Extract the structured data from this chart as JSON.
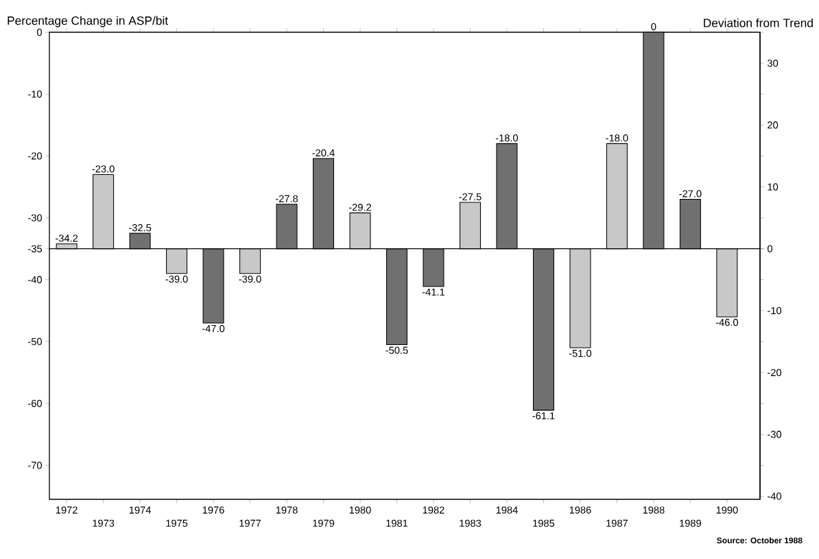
{
  "chart_data": {
    "type": "bar",
    "ylabel": "Percentage Change in ASP/bit",
    "y2label": "Deviation from Trend",
    "categories": [
      "1972",
      "1973",
      "1974",
      "1975",
      "1976",
      "1977",
      "1978",
      "1979",
      "1980",
      "1981",
      "1982",
      "1983",
      "1984",
      "1985",
      "1986",
      "1987",
      "1988",
      "1989",
      "1990"
    ],
    "base": [
      -35,
      -35,
      -35,
      -35,
      -35,
      -35,
      -35,
      -35,
      -35,
      -35,
      -35,
      -35,
      -35,
      -35,
      -35,
      -35,
      -35,
      -35,
      -35
    ],
    "values": [
      0.8,
      12.0,
      2.5,
      -4.0,
      -12.0,
      -4.0,
      7.2,
      14.6,
      5.8,
      -15.5,
      -6.1,
      7.5,
      17.0,
      -26.1,
      -16.0,
      17.0,
      35,
      8.0,
      -11.0
    ],
    "value_labels": [
      "-34.2",
      "-23.0",
      "-32.5",
      "-39.0",
      "-47.0",
      "-39.0",
      "-27.8",
      "-20.4",
      "-29.2",
      "-50.5",
      "-41.1",
      "-27.5",
      "-18.0",
      "-61.1",
      "-51.0",
      "-18.0",
      "0",
      "-27.0",
      "-46.0"
    ],
    "colors": [
      "#c8c8c8",
      "#c8c8c8",
      "#707070",
      "#c8c8c8",
      "#707070",
      "#c8c8c8",
      "#707070",
      "#707070",
      "#c8c8c8",
      "#707070",
      "#707070",
      "#c8c8c8",
      "#707070",
      "#707070",
      "#c8c8c8",
      "#c8c8c8",
      "#707070",
      "#707070",
      "#c8c8c8"
    ],
    "ylim": [
      -75.5,
      0
    ],
    "yticks": [
      0,
      -10,
      -20,
      -30,
      -35,
      -40,
      -50,
      -60,
      -70
    ],
    "y2lim": [
      -40.5,
      35
    ],
    "y2ticks": [
      30,
      20,
      10,
      0,
      -10,
      -20,
      -30,
      -40
    ],
    "annotations": [
      "Source: October 1988"
    ]
  }
}
